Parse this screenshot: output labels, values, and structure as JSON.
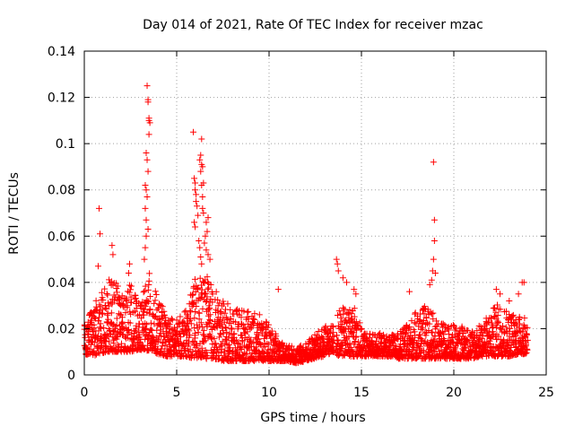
{
  "colors": {
    "series": "#ff0000",
    "grid": "#a0a0a0",
    "axis": "#000000",
    "background": "#ffffff"
  },
  "chart_data": {
    "type": "scatter",
    "marker": "plus",
    "title": "Day 014 of 2021, Rate Of TEC Index for receiver mzac",
    "xlabel": "GPS time / hours",
    "ylabel": "ROTI / TECUs",
    "xlim": [
      0,
      25
    ],
    "ylim": [
      0,
      0.14
    ],
    "xticks": [
      0,
      5,
      10,
      15,
      20,
      25
    ],
    "xtick_labels": [
      "0",
      "5",
      "10",
      "15",
      "20",
      "25"
    ],
    "yticks": [
      0,
      0.02,
      0.04,
      0.06,
      0.08,
      0.1,
      0.12,
      0.14
    ],
    "ytick_labels": [
      "0",
      "0.02",
      "0.04",
      "0.06",
      "0.08",
      "0.1",
      "0.12",
      "0.14"
    ],
    "grid": true,
    "series": [
      {
        "name": "ROTI",
        "note": "Dense scatter of ~2900 ROTI samples over 0-24 h; background ~0.005-0.02 TECU with enhanced activity bursts. Listed points are the notable outliers; background cloud is described by envelope.",
        "points": [
          [
            0.8,
            0.072
          ],
          [
            0.85,
            0.061
          ],
          [
            0.75,
            0.047
          ],
          [
            1.5,
            0.056
          ],
          [
            1.55,
            0.052
          ],
          [
            2.4,
            0.044
          ],
          [
            2.45,
            0.048
          ],
          [
            3.4,
            0.125
          ],
          [
            3.45,
            0.119
          ],
          [
            3.45,
            0.118
          ],
          [
            3.5,
            0.111
          ],
          [
            3.5,
            0.11
          ],
          [
            3.55,
            0.109
          ],
          [
            3.5,
            0.104
          ],
          [
            3.35,
            0.096
          ],
          [
            3.4,
            0.093
          ],
          [
            3.45,
            0.088
          ],
          [
            3.3,
            0.082
          ],
          [
            3.35,
            0.08
          ],
          [
            3.4,
            0.077
          ],
          [
            3.3,
            0.072
          ],
          [
            3.35,
            0.067
          ],
          [
            3.45,
            0.063
          ],
          [
            3.35,
            0.06
          ],
          [
            3.3,
            0.055
          ],
          [
            3.25,
            0.05
          ],
          [
            5.9,
            0.105
          ],
          [
            6.35,
            0.102
          ],
          [
            6.3,
            0.095
          ],
          [
            6.25,
            0.093
          ],
          [
            6.35,
            0.091
          ],
          [
            6.4,
            0.09
          ],
          [
            6.3,
            0.088
          ],
          [
            5.95,
            0.085
          ],
          [
            6.0,
            0.083
          ],
          [
            6.45,
            0.083
          ],
          [
            6.35,
            0.082
          ],
          [
            6.0,
            0.08
          ],
          [
            6.05,
            0.078
          ],
          [
            6.4,
            0.077
          ],
          [
            6.05,
            0.075
          ],
          [
            6.1,
            0.073
          ],
          [
            6.4,
            0.072
          ],
          [
            6.45,
            0.07
          ],
          [
            6.15,
            0.069
          ],
          [
            6.7,
            0.068
          ],
          [
            6.6,
            0.066
          ],
          [
            5.95,
            0.066
          ],
          [
            6.0,
            0.064
          ],
          [
            6.65,
            0.062
          ],
          [
            6.55,
            0.06
          ],
          [
            6.2,
            0.058
          ],
          [
            6.5,
            0.057
          ],
          [
            6.25,
            0.055
          ],
          [
            6.6,
            0.054
          ],
          [
            6.7,
            0.052
          ],
          [
            6.3,
            0.051
          ],
          [
            6.8,
            0.05
          ],
          [
            6.35,
            0.048
          ],
          [
            10.5,
            0.037
          ],
          [
            13.65,
            0.05
          ],
          [
            13.7,
            0.048
          ],
          [
            13.75,
            0.045
          ],
          [
            14.0,
            0.042
          ],
          [
            14.2,
            0.04
          ],
          [
            14.6,
            0.037
          ],
          [
            14.7,
            0.035
          ],
          [
            18.9,
            0.092
          ],
          [
            18.95,
            0.067
          ],
          [
            18.95,
            0.058
          ],
          [
            18.9,
            0.05
          ],
          [
            18.85,
            0.045
          ],
          [
            19.0,
            0.044
          ],
          [
            18.8,
            0.041
          ],
          [
            18.7,
            0.039
          ],
          [
            17.6,
            0.036
          ],
          [
            22.3,
            0.037
          ],
          [
            22.5,
            0.035
          ],
          [
            23.0,
            0.032
          ],
          [
            23.5,
            0.035
          ],
          [
            23.7,
            0.04
          ],
          [
            23.8,
            0.04
          ]
        ],
        "envelope": [
          [
            0.0,
            0.009,
            0.024
          ],
          [
            0.5,
            0.008,
            0.03
          ],
          [
            1.0,
            0.009,
            0.038
          ],
          [
            1.5,
            0.01,
            0.046
          ],
          [
            2.0,
            0.01,
            0.034
          ],
          [
            2.5,
            0.01,
            0.04
          ],
          [
            3.0,
            0.011,
            0.03
          ],
          [
            3.5,
            0.01,
            0.045
          ],
          [
            4.0,
            0.009,
            0.033
          ],
          [
            4.5,
            0.008,
            0.026
          ],
          [
            5.0,
            0.008,
            0.024
          ],
          [
            5.5,
            0.008,
            0.028
          ],
          [
            6.0,
            0.007,
            0.042
          ],
          [
            6.5,
            0.007,
            0.045
          ],
          [
            7.0,
            0.007,
            0.038
          ],
          [
            7.5,
            0.006,
            0.032
          ],
          [
            8.0,
            0.006,
            0.03
          ],
          [
            8.5,
            0.006,
            0.029
          ],
          [
            9.0,
            0.006,
            0.027
          ],
          [
            9.5,
            0.006,
            0.026
          ],
          [
            10.0,
            0.006,
            0.022
          ],
          [
            10.5,
            0.006,
            0.016
          ],
          [
            11.0,
            0.006,
            0.013
          ],
          [
            11.5,
            0.005,
            0.012
          ],
          [
            12.0,
            0.006,
            0.014
          ],
          [
            12.5,
            0.007,
            0.018
          ],
          [
            13.0,
            0.008,
            0.021
          ],
          [
            13.5,
            0.01,
            0.022
          ],
          [
            13.8,
            0.008,
            0.028
          ],
          [
            14.2,
            0.008,
            0.03
          ],
          [
            14.7,
            0.008,
            0.03
          ],
          [
            15.0,
            0.008,
            0.02
          ],
          [
            15.5,
            0.008,
            0.018
          ],
          [
            16.0,
            0.008,
            0.018
          ],
          [
            16.5,
            0.008,
            0.017
          ],
          [
            17.0,
            0.007,
            0.018
          ],
          [
            17.5,
            0.007,
            0.022
          ],
          [
            18.0,
            0.007,
            0.028
          ],
          [
            18.5,
            0.007,
            0.03
          ],
          [
            19.0,
            0.007,
            0.026
          ],
          [
            19.5,
            0.007,
            0.022
          ],
          [
            20.0,
            0.007,
            0.022
          ],
          [
            20.5,
            0.007,
            0.021
          ],
          [
            21.0,
            0.007,
            0.02
          ],
          [
            21.5,
            0.008,
            0.022
          ],
          [
            22.0,
            0.008,
            0.028
          ],
          [
            22.5,
            0.008,
            0.032
          ],
          [
            23.0,
            0.008,
            0.028
          ],
          [
            23.5,
            0.009,
            0.026
          ],
          [
            24.0,
            0.009,
            0.024
          ]
        ],
        "gaps": [
          [
            13.52,
            13.62
          ]
        ]
      }
    ]
  }
}
